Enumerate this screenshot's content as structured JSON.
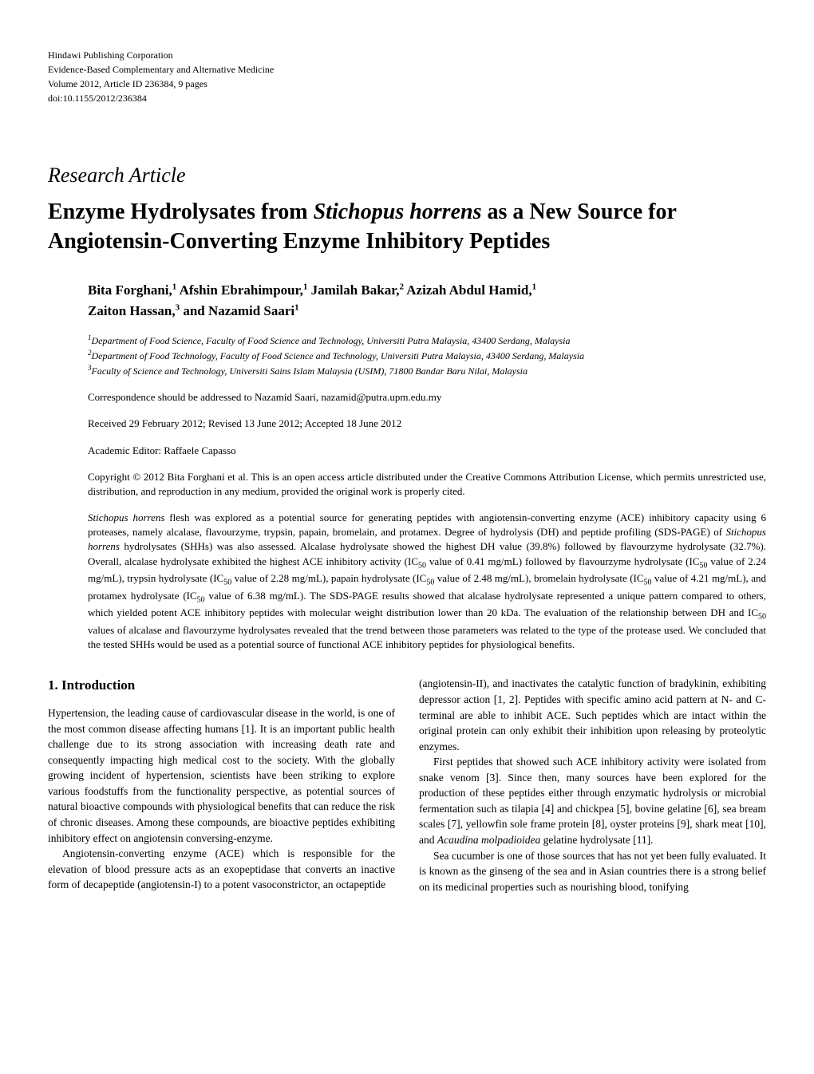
{
  "publisher": {
    "line1": "Hindawi Publishing Corporation",
    "line2": "Evidence-Based Complementary and Alternative Medicine",
    "line3": "Volume 2012, Article ID 236384, 9 pages",
    "line4": "doi:10.1155/2012/236384"
  },
  "article_type": "Research Article",
  "title": {
    "part1": "Enzyme Hydrolysates from ",
    "italic": "Stichopus horrens",
    "part2": " as a New Source for Angiotensin-Converting Enzyme Inhibitory Peptides"
  },
  "authors": {
    "a1_name": "Bita Forghani,",
    "a1_sup": "1",
    "a2_name": " Afshin Ebrahimpour,",
    "a2_sup": "1",
    "a3_name": " Jamilah Bakar,",
    "a3_sup": "2",
    "a4_name": " Azizah Abdul Hamid,",
    "a4_sup": "1",
    "a5_name": "Zaiton Hassan,",
    "a5_sup": "3",
    "a6_name": " and Nazamid Saari",
    "a6_sup": "1"
  },
  "affiliations": {
    "aff1_num": "1",
    "aff1": "Department of Food Science, Faculty of Food Science and Technology, Universiti Putra Malaysia, 43400 Serdang, Malaysia",
    "aff2_num": "2",
    "aff2": "Department of Food Technology, Faculty of Food Science and Technology, Universiti Putra Malaysia, 43400 Serdang, Malaysia",
    "aff3_num": "3",
    "aff3": "Faculty of Science and Technology, Universiti Sains Islam Malaysia (USIM), 71800 Bandar Baru Nilai, Malaysia"
  },
  "correspondence": "Correspondence should be addressed to Nazamid Saari, nazamid@putra.upm.edu.my",
  "dates": "Received 29 February 2012; Revised 13 June 2012; Accepted 18 June 2012",
  "editor": "Academic Editor: Raffaele Capasso",
  "copyright": "Copyright © 2012 Bita Forghani et al. This is an open access article distributed under the Creative Commons Attribution License, which permits unrestricted use, distribution, and reproduction in any medium, provided the original work is properly cited.",
  "abstract": {
    "italic1": "Stichopus horrens",
    "text1": " flesh was explored as a potential source for generating peptides with angiotensin-converting enzyme (ACE) inhibitory capacity using 6 proteases, namely alcalase, flavourzyme, trypsin, papain, bromelain, and protamex. Degree of hydrolysis (DH) and peptide profiling (SDS-PAGE) of ",
    "italic2": "Stichopus horrens",
    "text2": " hydrolysates (SHHs) was also assessed. Alcalase hydrolysate showed the highest DH value (39.8%) followed by flavourzyme hydrolysate (32.7%). Overall, alcalase hydrolysate exhibited the highest ACE inhibitory activity (IC",
    "sub1": "50",
    "text3": " value of 0.41 mg/mL) followed by flavourzyme hydrolysate (IC",
    "sub2": "50",
    "text4": " value of 2.24 mg/mL), trypsin hydrolysate (IC",
    "sub3": "50",
    "text5": " value of 2.28 mg/mL), papain hydrolysate (IC",
    "sub4": "50",
    "text6": " value of 2.48 mg/mL), bromelain hydrolysate (IC",
    "sub5": "50",
    "text7": " value of 4.21 mg/mL), and protamex hydrolysate (IC",
    "sub6": "50",
    "text8": " value of 6.38 mg/mL). The SDS-PAGE results showed that alcalase hydrolysate represented a unique pattern compared to others, which yielded potent ACE inhibitory peptides with molecular weight distribution lower than 20 kDa. The evaluation of the relationship between DH and IC",
    "sub7": "50",
    "text9": " values of alcalase and flavourzyme hydrolysates revealed that the trend between those parameters was related to the type of the protease used. We concluded that the tested SHHs would be used as a potential source of functional ACE inhibitory peptides for physiological benefits."
  },
  "section1_heading": "1. Introduction",
  "body": {
    "col1_p1": "Hypertension, the leading cause of cardiovascular disease in the world, is one of the most common disease affecting humans [1]. It is an important public health challenge due to its strong association with increasing death rate and consequently impacting high medical cost to the society. With the globally growing incident of hypertension, scientists have been striking to explore various foodstuffs from the functionality perspective, as potential sources of natural bioactive compounds with physiological benefits that can reduce the risk of chronic diseases. Among these compounds, are bioactive peptides exhibiting inhibitory effect on angiotensin conversing-enzyme.",
    "col1_p2": "Angiotensin-converting enzyme (ACE) which is responsible for the elevation of blood pressure acts as an exopeptidase that converts an inactive form of decapeptide (angiotensin-I) to a potent vasoconstrictor, an octapeptide",
    "col2_p1": "(angiotensin-II), and inactivates the catalytic function of bradykinin, exhibiting depressor action [1, 2]. Peptides with specific amino acid pattern at N- and C-terminal are able to inhibit ACE. Such peptides which are intact within the original protein can only exhibit their inhibition upon releasing by proteolytic enzymes.",
    "col2_p2_a": "First peptides that showed such ACE inhibitory activity were isolated from snake venom [3]. Since then, many sources have been explored for the production of these peptides either through enzymatic hydrolysis or microbial fermentation such as tilapia [4] and chickpea [5], bovine gelatine [6], sea bream scales [7], yellowfin sole frame protein [8], oyster proteins [9], shark meat [10], and ",
    "col2_p2_italic": "Acaudina molpadioidea",
    "col2_p2_b": " gelatine hydrolysate [11].",
    "col2_p3": "Sea cucumber is one of those sources that has not yet been fully evaluated. It is known as the ginseng of the sea and in Asian countries there is a strong belief on its medicinal properties such as nourishing blood, tonifying"
  }
}
